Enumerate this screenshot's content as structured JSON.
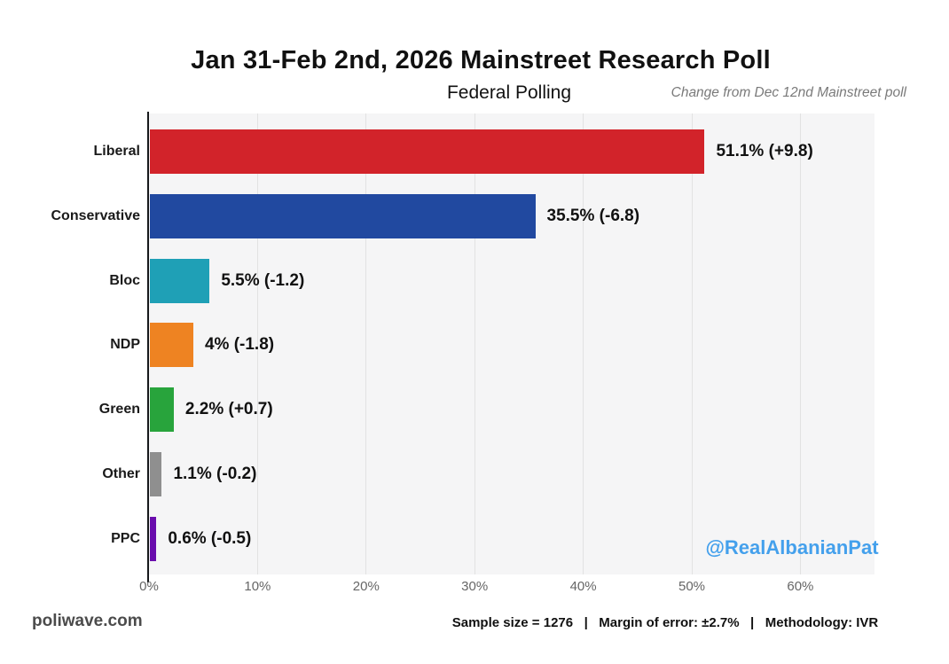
{
  "header": {
    "title": "Jan 31-Feb 2nd, 2026 Mainstreet Research Poll",
    "subtitle": "Federal Polling",
    "change_note": "Change from Dec 12nd Mainstreet poll"
  },
  "watermark": "@RealAlbanianPat",
  "footer": {
    "site": "poliwave.com",
    "note": "Sample size = 1276   |   Margin of error: ±2.7%   |   Methodology: IVR"
  },
  "colors": {
    "plot_background": "#f5f5f6",
    "gridline": "#e2e2e2",
    "axis": "#17191c",
    "watermark_blue": "#44a0ec"
  },
  "chart_data": {
    "type": "bar",
    "orientation": "horizontal",
    "title": "Jan 31-Feb 2nd, 2026 Mainstreet Research Poll",
    "subtitle": "Federal Polling",
    "annotation": "Change from Dec 12nd Mainstreet poll",
    "categories": [
      "Liberal",
      "Conservative",
      "Bloc",
      "NDP",
      "Green",
      "Other",
      "PPC"
    ],
    "series": [
      {
        "name": "Support %",
        "values": [
          51.1,
          35.5,
          5.5,
          4,
          2.2,
          1.1,
          0.6
        ]
      }
    ],
    "changes": [
      9.8,
      -6.8,
      -1.2,
      -1.8,
      0.7,
      -0.2,
      -0.5
    ],
    "bar_labels": [
      "51.1% (+9.8)",
      "35.5% (-6.8)",
      "5.5% (-1.2)",
      "4% (-1.8)",
      "2.2% (+0.7)",
      "1.1% (-0.2)",
      "0.6% (-0.5)"
    ],
    "bar_colors": [
      "#d2232a",
      "#2149a0",
      "#1fa0b6",
      "#ee8322",
      "#28a43c",
      "#8f8f8f",
      "#6a0dad"
    ],
    "xlim": [
      0,
      66.8
    ],
    "xticks": [
      0,
      10,
      20,
      30,
      40,
      50,
      60
    ],
    "xtick_labels": [
      "0%",
      "10%",
      "20%",
      "30%",
      "40%",
      "50%",
      "60%"
    ],
    "grid": true,
    "legend": false
  }
}
